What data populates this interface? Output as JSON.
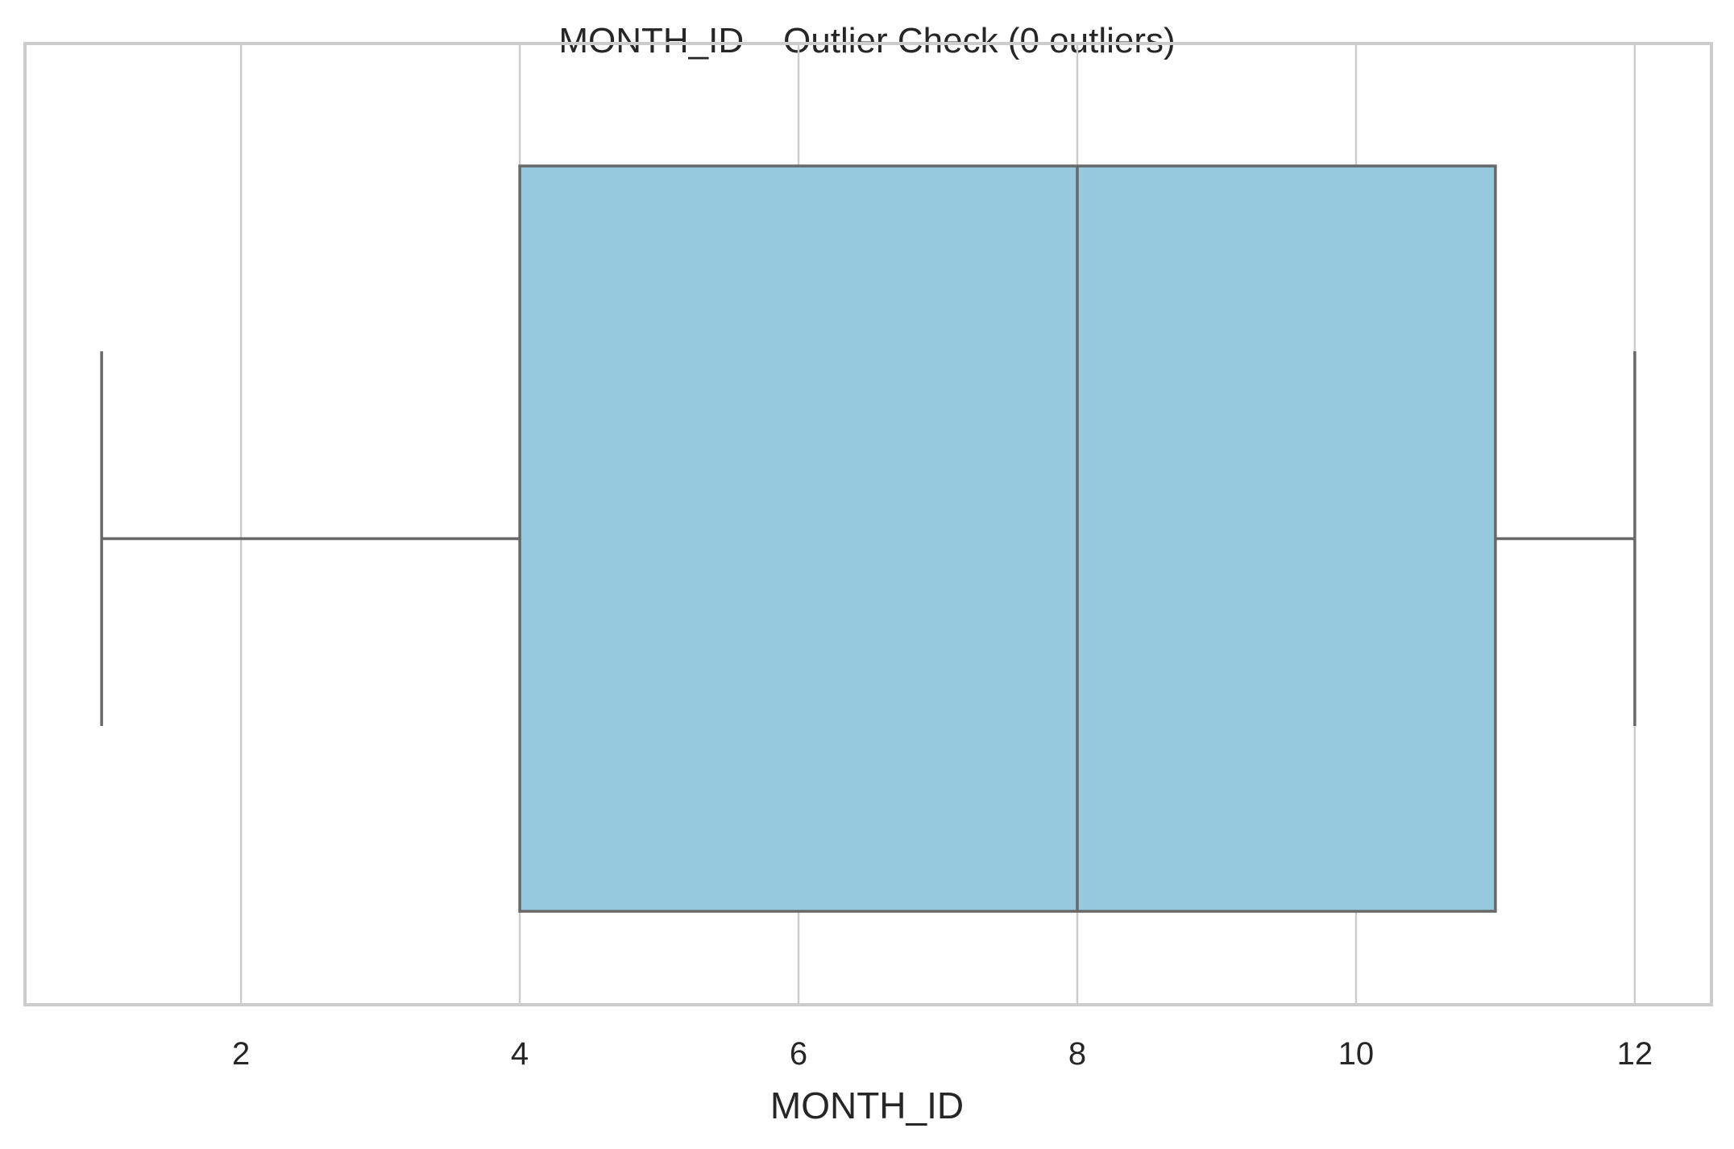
{
  "chart_data": {
    "type": "boxplot",
    "title": "MONTH_ID – Outlier Check (0 outliers)",
    "xlabel": "MONTH_ID",
    "ylabel": "",
    "xlim": [
      0.45,
      12.55
    ],
    "xticks": [
      2,
      4,
      6,
      8,
      10,
      12
    ],
    "grid": true,
    "orientation": "horizontal",
    "box": {
      "whisker_low": 1,
      "q1": 4,
      "median": 8,
      "q3": 11,
      "whisker_high": 12,
      "outliers": []
    },
    "colors": {
      "box_fill": "#96c8de",
      "box_line": "#686868",
      "grid": "#cccccc",
      "frame": "#cccccc",
      "text": "#262626"
    }
  }
}
